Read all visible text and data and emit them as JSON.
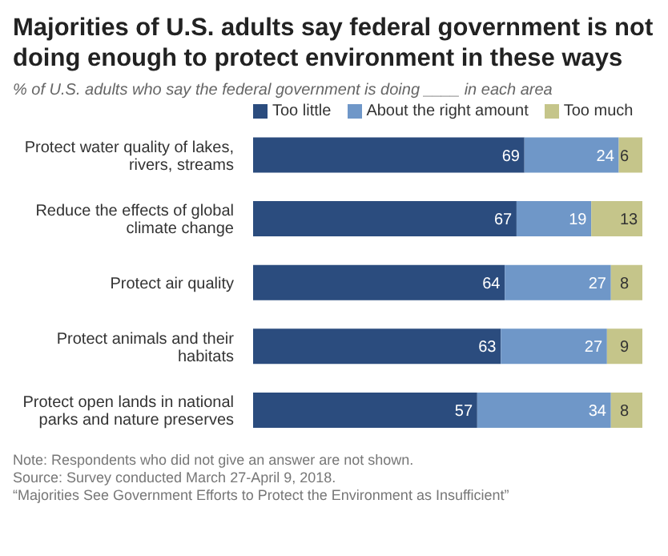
{
  "chart_data": {
    "type": "bar",
    "orientation": "horizontal",
    "stacked": true,
    "data_labels": true,
    "legend": "top",
    "title": "Majorities of U.S. adults say federal government is not doing enough to protect environment in these ways",
    "subtitle": "% of U.S. adults who say the federal government is doing ____ in each area",
    "categories": [
      "Protect water quality of lakes, rivers, streams",
      "Reduce the effects of global climate change",
      "Protect air quality",
      "Protect animals and their habitats",
      "Protect open lands in national parks and nature preserves"
    ],
    "series": [
      {
        "name": "Too little",
        "color": "#2b4c7e",
        "values": [
          69,
          67,
          64,
          63,
          57
        ]
      },
      {
        "name": "About the right amount",
        "color": "#6f97c8",
        "values": [
          24,
          19,
          27,
          27,
          34
        ]
      },
      {
        "name": "Too much",
        "color": "#c5c58a",
        "values": [
          6,
          13,
          8,
          9,
          8
        ]
      }
    ],
    "annotations": [
      "Note: Respondents who did not give an answer are not shown.",
      "Source: Survey conducted March 27-April 9, 2018.",
      "“Majorities See Government Efforts to Protect the Environment as Insufficient”"
    ]
  }
}
